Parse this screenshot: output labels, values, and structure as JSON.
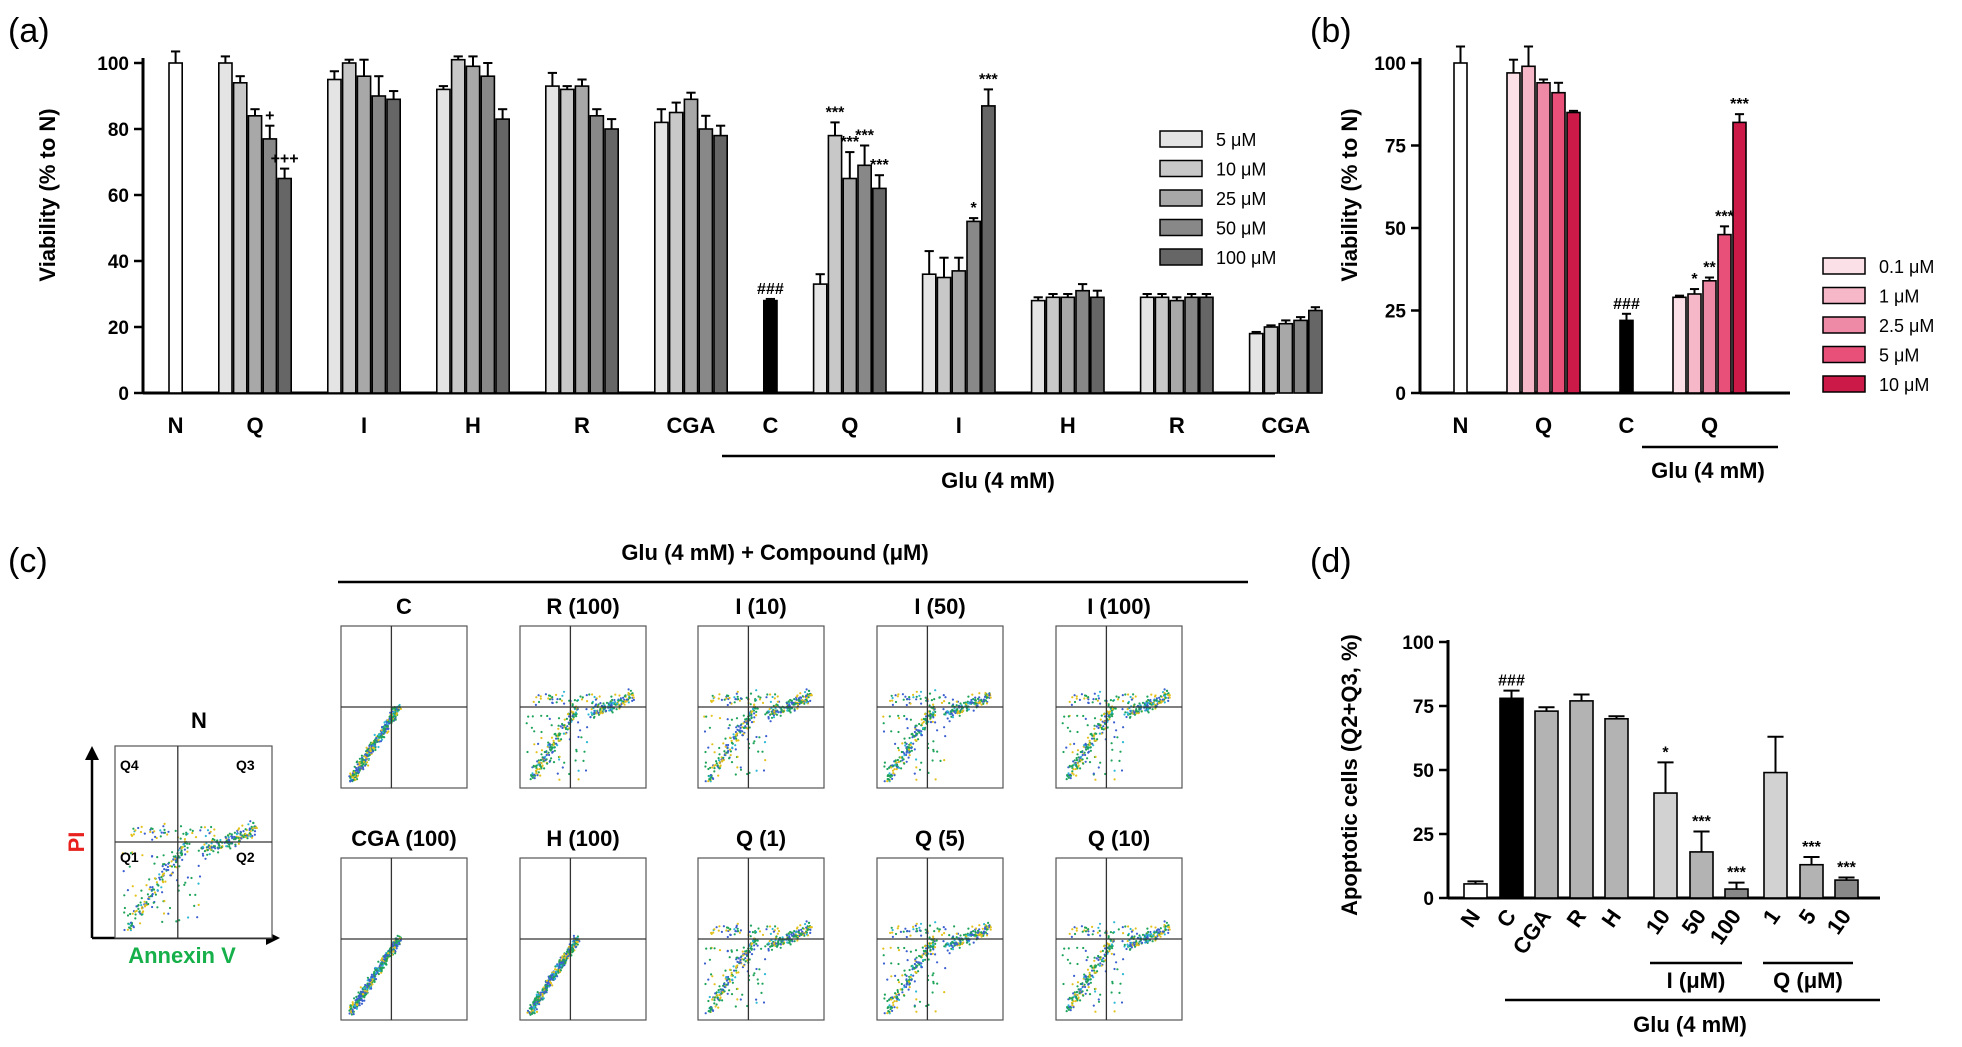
{
  "chart_data": [
    {
      "panel": "(a)",
      "type": "bar",
      "ylabel": "Viability (% to N)",
      "ylim": [
        0,
        110
      ],
      "yticks": [
        0,
        20,
        40,
        60,
        80,
        100
      ],
      "legend": [
        "5 μM",
        "10 μM",
        "25 μM",
        "50 μM",
        "100 μM"
      ],
      "legend_colors": [
        "#e4e4e4",
        "#c8c8c8",
        "#a8a8a8",
        "#888888",
        "#666666"
      ],
      "group_label": "Glu (4 mM)",
      "groups": [
        {
          "label": "N",
          "values": [
            100
          ],
          "errors": [
            3.5
          ],
          "colors": [
            "#ffffff"
          ],
          "marks": [
            ""
          ]
        },
        {
          "label": "Q",
          "values": [
            100,
            94,
            84,
            77,
            65
          ],
          "errors": [
            2,
            2,
            2,
            4,
            3
          ],
          "marks": [
            "",
            "",
            "",
            "+",
            "+++"
          ]
        },
        {
          "label": "I",
          "values": [
            95,
            100,
            96,
            90,
            89
          ],
          "errors": [
            2.5,
            1,
            5,
            6,
            2.5
          ],
          "marks": [
            "",
            "",
            "",
            "",
            ""
          ]
        },
        {
          "label": "H",
          "values": [
            92,
            101,
            99,
            96,
            83
          ],
          "errors": [
            1,
            1,
            3,
            4,
            3
          ],
          "marks": [
            "",
            "",
            "",
            "",
            ""
          ]
        },
        {
          "label": "R",
          "values": [
            93,
            92,
            93,
            84,
            80
          ],
          "errors": [
            4,
            1,
            2,
            2,
            3
          ],
          "marks": [
            "",
            "",
            "",
            "",
            ""
          ]
        },
        {
          "label": "CGA",
          "values": [
            82,
            85,
            89,
            80,
            78
          ],
          "errors": [
            4,
            3,
            2,
            4,
            3
          ],
          "marks": [
            "",
            "",
            "",
            "",
            ""
          ]
        },
        {
          "label": "C",
          "values": [
            28
          ],
          "errors": [
            0.5
          ],
          "colors": [
            "#000000"
          ],
          "marks": [
            "###"
          ]
        },
        {
          "label": "Q",
          "values": [
            33,
            78,
            65,
            69,
            62
          ],
          "errors": [
            3,
            4,
            8,
            6,
            4
          ],
          "marks": [
            "",
            "***",
            "***",
            "***",
            "***"
          ]
        },
        {
          "label": "I",
          "values": [
            36,
            35,
            37,
            52,
            87
          ],
          "errors": [
            7,
            6,
            4,
            1,
            5
          ],
          "marks": [
            "",
            "",
            "",
            "*",
            "***"
          ]
        },
        {
          "label": "H",
          "values": [
            28,
            29,
            29,
            31,
            29
          ],
          "errors": [
            1,
            1,
            1,
            2,
            2
          ],
          "marks": [
            "",
            "",
            "",
            "",
            ""
          ]
        },
        {
          "label": "R",
          "values": [
            29,
            29,
            28,
            29,
            29
          ],
          "errors": [
            1,
            1,
            1,
            1,
            1
          ],
          "marks": [
            "",
            "",
            "",
            "",
            ""
          ]
        },
        {
          "label": "CGA",
          "values": [
            18,
            20,
            21,
            22,
            25
          ],
          "errors": [
            0.5,
            0.5,
            1,
            1,
            1
          ],
          "marks": [
            "",
            "",
            "",
            "",
            ""
          ]
        }
      ]
    },
    {
      "panel": "(b)",
      "type": "bar",
      "ylabel": "Viability (% to N)",
      "ylim": [
        0,
        110
      ],
      "yticks": [
        0,
        25,
        50,
        75,
        100
      ],
      "legend": [
        "0.1 μM",
        "1 μM",
        "2.5 μM",
        "5 μM",
        "10 μM"
      ],
      "legend_colors": [
        "#fbe0e8",
        "#f6b8c9",
        "#ef8aa6",
        "#e8507a",
        "#cc1a48"
      ],
      "group_label": "Glu (4 mM)",
      "groups": [
        {
          "label": "N",
          "values": [
            100
          ],
          "errors": [
            5
          ],
          "colors": [
            "#ffffff"
          ],
          "marks": [
            ""
          ]
        },
        {
          "label": "Q",
          "values": [
            97,
            99,
            94,
            91,
            85
          ],
          "errors": [
            4,
            6,
            1,
            3,
            0.5
          ],
          "marks": [
            "",
            "",
            "",
            "",
            ""
          ]
        },
        {
          "label": "C",
          "values": [
            22
          ],
          "errors": [
            2
          ],
          "colors": [
            "#000000"
          ],
          "marks": [
            "###"
          ]
        },
        {
          "label": "Q",
          "values": [
            29,
            30,
            34,
            48,
            82
          ],
          "errors": [
            0.5,
            1.5,
            1,
            2.5,
            2.5
          ],
          "marks": [
            "",
            "*",
            "**",
            "***",
            "***"
          ]
        }
      ]
    },
    {
      "panel": "(c)",
      "type": "scatter",
      "title": "Glu (4 mM) + Compound (μM)",
      "xlabel": "Annexin V",
      "ylabel": "PI",
      "example_title": "N",
      "quadrants": [
        "Q4",
        "Q3",
        "Q1",
        "Q2"
      ],
      "plots_row1": [
        "C",
        "R (100)",
        "I (10)",
        "I (50)",
        "I (100)"
      ],
      "plots_row2": [
        "CGA (100)",
        "H (100)",
        "Q (1)",
        "Q (5)",
        "Q (10)"
      ]
    },
    {
      "panel": "(d)",
      "type": "bar",
      "ylabel": "Apoptotic cells (Q2+Q3, %)",
      "ylim": [
        0,
        100
      ],
      "yticks": [
        0,
        25,
        50,
        75,
        100
      ],
      "categories": [
        "N",
        "C",
        "CGA",
        "R",
        "H",
        "10",
        "50",
        "100",
        "1",
        "5",
        "10"
      ],
      "values": [
        5.5,
        78,
        73,
        77,
        70,
        41,
        18,
        3.5,
        49,
        13,
        7
      ],
      "errors": [
        1,
        3,
        1.5,
        2.5,
        1,
        12,
        8,
        2.5,
        14,
        3,
        1
      ],
      "colors": [
        "#ffffff",
        "#000000",
        "#b3b3b3",
        "#b3b3b3",
        "#b3b3b3",
        "#d2d2d2",
        "#b3b3b3",
        "#888888",
        "#d2d2d2",
        "#b3b3b3",
        "#888888"
      ],
      "marks": [
        "",
        "###",
        "",
        "",
        "",
        "*",
        "***",
        "***",
        "",
        "***",
        "***"
      ],
      "subgroup_labels": [
        "I (μM)",
        "Q (μM)"
      ],
      "group_label": "Glu (4 mM)"
    }
  ]
}
